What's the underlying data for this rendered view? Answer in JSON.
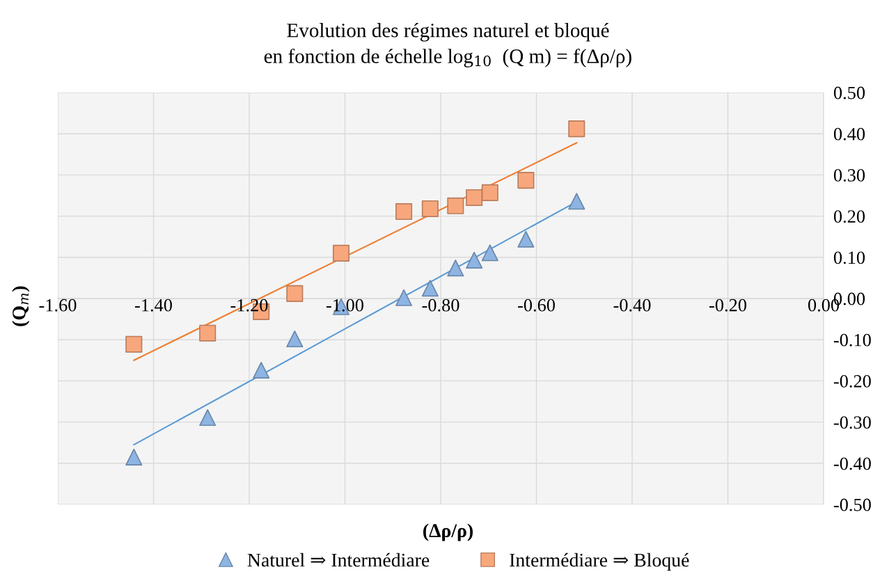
{
  "chart_data": {
    "type": "scatter",
    "title": "Evolution des régimes naturel et bloqué\nen fonction de échelle log$_{10}$  (Q m) = f(Δρ/ρ)",
    "xlabel": "(Δρ/ρ)",
    "ylabel": "(Q$_{m}$)",
    "xlim": [
      -1.6,
      0.0
    ],
    "xticks": [
      {
        "value": -1.6,
        "label": "-1.60"
      },
      {
        "value": -1.4,
        "label": "-1.40"
      },
      {
        "value": -1.2,
        "label": "-1.20"
      },
      {
        "value": -1.0,
        "label": "-1.00"
      },
      {
        "value": -0.8,
        "label": "-0.80"
      },
      {
        "value": -0.6,
        "label": "-0.60"
      },
      {
        "value": -0.4,
        "label": "-0.40"
      },
      {
        "value": -0.2,
        "label": "-0.20"
      },
      {
        "value": 0.0,
        "label": "0.00"
      }
    ],
    "ylim": [
      -0.5,
      0.5
    ],
    "yticks": [
      {
        "value": -0.5,
        "label": "-0.50"
      },
      {
        "value": -0.4,
        "label": "-0.40"
      },
      {
        "value": -0.3,
        "label": "-0.30"
      },
      {
        "value": -0.2,
        "label": "-0.20"
      },
      {
        "value": -0.1,
        "label": "-0.10"
      },
      {
        "value": 0.0,
        "label": "0.00"
      },
      {
        "value": 0.1,
        "label": "0.10"
      },
      {
        "value": 0.2,
        "label": "0.20"
      },
      {
        "value": 0.3,
        "label": "0.30"
      },
      {
        "value": 0.4,
        "label": "0.40"
      },
      {
        "value": 0.5,
        "label": "0.50"
      }
    ],
    "grid": true,
    "legend": "bottom",
    "series": [
      {
        "name": "Naturel ⇒ Intermédiare",
        "marker": "triangle",
        "color": "#8db4e2",
        "x": [
          -1.441,
          -1.287,
          -1.175,
          -1.105,
          -1.008,
          -0.877,
          -0.822,
          -0.769,
          -0.73,
          -0.697,
          -0.622,
          -0.516
        ],
        "values": [
          -0.385,
          -0.289,
          -0.174,
          -0.098,
          -0.02,
          0.002,
          0.025,
          0.074,
          0.093,
          0.111,
          0.144,
          0.236
        ]
      },
      {
        "name": "Intermédiare ⇒ Bloqué",
        "marker": "square",
        "color": "#f8a77c",
        "x": [
          -1.441,
          -1.287,
          -1.175,
          -1.105,
          -1.008,
          -0.877,
          -0.822,
          -0.769,
          -0.73,
          -0.697,
          -0.622,
          -0.516
        ],
        "values": [
          -0.111,
          -0.084,
          -0.032,
          0.012,
          0.11,
          0.211,
          0.218,
          0.225,
          0.245,
          0.257,
          0.287,
          0.412
        ]
      },
      {
        "type": "line",
        "color": "#5b9bd5",
        "x": [
          -1.441,
          -0.516
        ],
        "values": [
          -0.355,
          0.235
        ]
      },
      {
        "type": "line",
        "color": "#ed7d31",
        "x": [
          -1.441,
          -0.516
        ],
        "values": [
          -0.15,
          0.378
        ]
      }
    ]
  }
}
